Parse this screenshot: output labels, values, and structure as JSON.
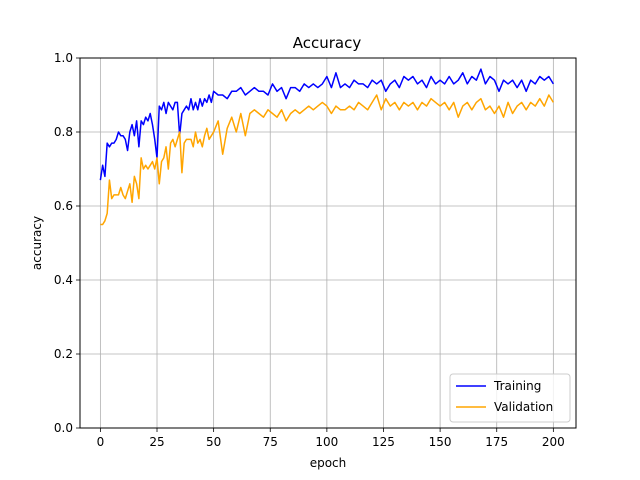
{
  "chart_data": {
    "type": "line",
    "title": "Accuracy",
    "xlabel": "epoch",
    "ylabel": "accuracy",
    "xlim": [
      -9,
      210
    ],
    "ylim": [
      0.0,
      1.0
    ],
    "xticks": [
      0,
      25,
      50,
      75,
      100,
      125,
      150,
      175,
      200
    ],
    "yticks": [
      0.0,
      0.2,
      0.4,
      0.6,
      0.8,
      1.0
    ],
    "xtick_labels": [
      "0",
      "25",
      "50",
      "75",
      "100",
      "125",
      "150",
      "175",
      "200"
    ],
    "ytick_labels": [
      "0.0",
      "0.2",
      "0.4",
      "0.6",
      "0.8",
      "1.0"
    ],
    "grid": true,
    "legend_position": "bottom-right",
    "series": [
      {
        "name": "Training",
        "color": "#0000ff",
        "points": [
          [
            0,
            0.67
          ],
          [
            1,
            0.71
          ],
          [
            2,
            0.68
          ],
          [
            3,
            0.77
          ],
          [
            4,
            0.76
          ],
          [
            5,
            0.77
          ],
          [
            6,
            0.77
          ],
          [
            7,
            0.78
          ],
          [
            8,
            0.8
          ],
          [
            9,
            0.79
          ],
          [
            10,
            0.79
          ],
          [
            11,
            0.78
          ],
          [
            12,
            0.75
          ],
          [
            13,
            0.8
          ],
          [
            14,
            0.82
          ],
          [
            15,
            0.79
          ],
          [
            16,
            0.83
          ],
          [
            17,
            0.76
          ],
          [
            18,
            0.83
          ],
          [
            19,
            0.82
          ],
          [
            20,
            0.84
          ],
          [
            21,
            0.83
          ],
          [
            22,
            0.85
          ],
          [
            23,
            0.82
          ],
          [
            24,
            0.78
          ],
          [
            25,
            0.73
          ],
          [
            26,
            0.87
          ],
          [
            27,
            0.86
          ],
          [
            28,
            0.88
          ],
          [
            29,
            0.85
          ],
          [
            30,
            0.88
          ],
          [
            31,
            0.87
          ],
          [
            32,
            0.86
          ],
          [
            33,
            0.88
          ],
          [
            34,
            0.88
          ],
          [
            35,
            0.79
          ],
          [
            36,
            0.85
          ],
          [
            37,
            0.86
          ],
          [
            38,
            0.87
          ],
          [
            39,
            0.86
          ],
          [
            40,
            0.89
          ],
          [
            41,
            0.86
          ],
          [
            42,
            0.88
          ],
          [
            43,
            0.86
          ],
          [
            44,
            0.89
          ],
          [
            45,
            0.87
          ],
          [
            46,
            0.89
          ],
          [
            47,
            0.88
          ],
          [
            48,
            0.9
          ],
          [
            49,
            0.88
          ],
          [
            50,
            0.91
          ],
          [
            52,
            0.9
          ],
          [
            54,
            0.9
          ],
          [
            56,
            0.89
          ],
          [
            58,
            0.91
          ],
          [
            60,
            0.91
          ],
          [
            62,
            0.92
          ],
          [
            64,
            0.9
          ],
          [
            66,
            0.91
          ],
          [
            68,
            0.92
          ],
          [
            70,
            0.91
          ],
          [
            72,
            0.91
          ],
          [
            74,
            0.9
          ],
          [
            76,
            0.93
          ],
          [
            78,
            0.91
          ],
          [
            80,
            0.92
          ],
          [
            82,
            0.89
          ],
          [
            84,
            0.92
          ],
          [
            86,
            0.92
          ],
          [
            88,
            0.91
          ],
          [
            90,
            0.93
          ],
          [
            92,
            0.92
          ],
          [
            94,
            0.93
          ],
          [
            96,
            0.92
          ],
          [
            98,
            0.93
          ],
          [
            100,
            0.95
          ],
          [
            102,
            0.92
          ],
          [
            104,
            0.96
          ],
          [
            106,
            0.92
          ],
          [
            108,
            0.93
          ],
          [
            110,
            0.92
          ],
          [
            112,
            0.94
          ],
          [
            114,
            0.93
          ],
          [
            116,
            0.93
          ],
          [
            118,
            0.92
          ],
          [
            120,
            0.94
          ],
          [
            122,
            0.93
          ],
          [
            124,
            0.94
          ],
          [
            126,
            0.91
          ],
          [
            128,
            0.93
          ],
          [
            130,
            0.94
          ],
          [
            132,
            0.92
          ],
          [
            134,
            0.95
          ],
          [
            136,
            0.94
          ],
          [
            138,
            0.95
          ],
          [
            140,
            0.93
          ],
          [
            142,
            0.94
          ],
          [
            144,
            0.92
          ],
          [
            146,
            0.95
          ],
          [
            148,
            0.93
          ],
          [
            150,
            0.94
          ],
          [
            152,
            0.93
          ],
          [
            154,
            0.95
          ],
          [
            156,
            0.93
          ],
          [
            158,
            0.94
          ],
          [
            160,
            0.96
          ],
          [
            162,
            0.93
          ],
          [
            164,
            0.95
          ],
          [
            166,
            0.94
          ],
          [
            168,
            0.97
          ],
          [
            170,
            0.93
          ],
          [
            172,
            0.95
          ],
          [
            174,
            0.94
          ],
          [
            176,
            0.91
          ],
          [
            178,
            0.94
          ],
          [
            180,
            0.93
          ],
          [
            182,
            0.94
          ],
          [
            184,
            0.92
          ],
          [
            186,
            0.94
          ],
          [
            188,
            0.91
          ],
          [
            190,
            0.94
          ],
          [
            192,
            0.93
          ],
          [
            194,
            0.95
          ],
          [
            196,
            0.94
          ],
          [
            198,
            0.95
          ],
          [
            200,
            0.93
          ]
        ]
      },
      {
        "name": "Validation",
        "color": "#ffa500",
        "points": [
          [
            0,
            0.55
          ],
          [
            1,
            0.55
          ],
          [
            2,
            0.56
          ],
          [
            3,
            0.58
          ],
          [
            4,
            0.67
          ],
          [
            5,
            0.62
          ],
          [
            6,
            0.63
          ],
          [
            7,
            0.63
          ],
          [
            8,
            0.63
          ],
          [
            9,
            0.65
          ],
          [
            10,
            0.63
          ],
          [
            11,
            0.62
          ],
          [
            12,
            0.64
          ],
          [
            13,
            0.66
          ],
          [
            14,
            0.61
          ],
          [
            15,
            0.68
          ],
          [
            16,
            0.66
          ],
          [
            17,
            0.62
          ],
          [
            18,
            0.73
          ],
          [
            19,
            0.7
          ],
          [
            20,
            0.71
          ],
          [
            21,
            0.7
          ],
          [
            22,
            0.71
          ],
          [
            23,
            0.72
          ],
          [
            24,
            0.7
          ],
          [
            25,
            0.73
          ],
          [
            26,
            0.66
          ],
          [
            27,
            0.72
          ],
          [
            28,
            0.73
          ],
          [
            29,
            0.76
          ],
          [
            30,
            0.7
          ],
          [
            31,
            0.77
          ],
          [
            32,
            0.78
          ],
          [
            33,
            0.76
          ],
          [
            34,
            0.78
          ],
          [
            35,
            0.8
          ],
          [
            36,
            0.69
          ],
          [
            37,
            0.77
          ],
          [
            38,
            0.78
          ],
          [
            39,
            0.78
          ],
          [
            40,
            0.78
          ],
          [
            41,
            0.76
          ],
          [
            42,
            0.8
          ],
          [
            43,
            0.77
          ],
          [
            44,
            0.78
          ],
          [
            45,
            0.76
          ],
          [
            46,
            0.79
          ],
          [
            47,
            0.81
          ],
          [
            48,
            0.78
          ],
          [
            49,
            0.79
          ],
          [
            50,
            0.8
          ],
          [
            52,
            0.83
          ],
          [
            54,
            0.74
          ],
          [
            56,
            0.81
          ],
          [
            58,
            0.84
          ],
          [
            60,
            0.8
          ],
          [
            62,
            0.85
          ],
          [
            64,
            0.79
          ],
          [
            66,
            0.85
          ],
          [
            68,
            0.86
          ],
          [
            70,
            0.85
          ],
          [
            72,
            0.84
          ],
          [
            74,
            0.86
          ],
          [
            76,
            0.85
          ],
          [
            78,
            0.84
          ],
          [
            80,
            0.86
          ],
          [
            82,
            0.83
          ],
          [
            84,
            0.85
          ],
          [
            86,
            0.86
          ],
          [
            88,
            0.85
          ],
          [
            90,
            0.86
          ],
          [
            92,
            0.87
          ],
          [
            94,
            0.86
          ],
          [
            96,
            0.87
          ],
          [
            98,
            0.88
          ],
          [
            100,
            0.87
          ],
          [
            102,
            0.85
          ],
          [
            104,
            0.87
          ],
          [
            106,
            0.86
          ],
          [
            108,
            0.86
          ],
          [
            110,
            0.87
          ],
          [
            112,
            0.86
          ],
          [
            114,
            0.88
          ],
          [
            116,
            0.87
          ],
          [
            118,
            0.86
          ],
          [
            120,
            0.88
          ],
          [
            122,
            0.9
          ],
          [
            124,
            0.86
          ],
          [
            126,
            0.89
          ],
          [
            128,
            0.87
          ],
          [
            130,
            0.88
          ],
          [
            132,
            0.86
          ],
          [
            134,
            0.88
          ],
          [
            136,
            0.87
          ],
          [
            138,
            0.88
          ],
          [
            140,
            0.86
          ],
          [
            142,
            0.88
          ],
          [
            144,
            0.87
          ],
          [
            146,
            0.89
          ],
          [
            148,
            0.88
          ],
          [
            150,
            0.87
          ],
          [
            152,
            0.88
          ],
          [
            154,
            0.86
          ],
          [
            156,
            0.88
          ],
          [
            158,
            0.84
          ],
          [
            160,
            0.87
          ],
          [
            162,
            0.88
          ],
          [
            164,
            0.86
          ],
          [
            166,
            0.88
          ],
          [
            168,
            0.89
          ],
          [
            170,
            0.86
          ],
          [
            172,
            0.87
          ],
          [
            174,
            0.85
          ],
          [
            176,
            0.87
          ],
          [
            178,
            0.84
          ],
          [
            180,
            0.88
          ],
          [
            182,
            0.85
          ],
          [
            184,
            0.87
          ],
          [
            186,
            0.88
          ],
          [
            188,
            0.86
          ],
          [
            190,
            0.88
          ],
          [
            192,
            0.87
          ],
          [
            194,
            0.89
          ],
          [
            196,
            0.87
          ],
          [
            198,
            0.9
          ],
          [
            200,
            0.88
          ]
        ]
      }
    ]
  }
}
